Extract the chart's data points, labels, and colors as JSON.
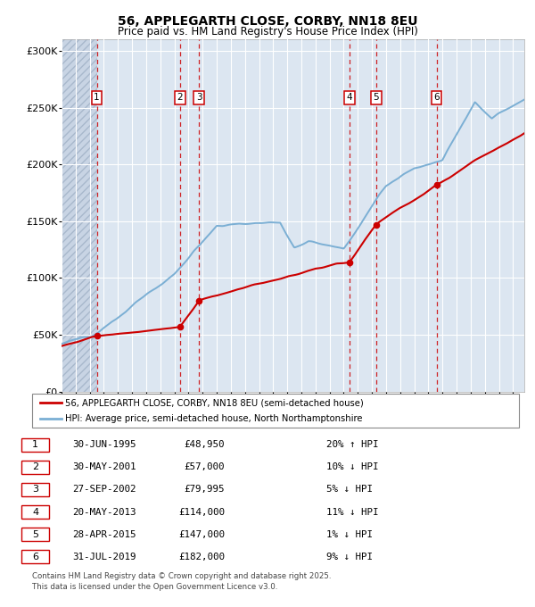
{
  "title1": "56, APPLEGARTH CLOSE, CORBY, NN18 8EU",
  "title2": "Price paid vs. HM Land Registry's House Price Index (HPI)",
  "ylabel_ticks": [
    "£0",
    "£50K",
    "£100K",
    "£150K",
    "£200K",
    "£250K",
    "£300K"
  ],
  "ytick_values": [
    0,
    50000,
    100000,
    150000,
    200000,
    250000,
    300000
  ],
  "ylim": [
    0,
    310000
  ],
  "xlim_start": 1993.0,
  "xlim_end": 2025.8,
  "transactions": [
    {
      "num": 1,
      "date": "30-JUN-1995",
      "price": 48950,
      "pct": "20%",
      "dir": "↑",
      "year": 1995.5
    },
    {
      "num": 2,
      "date": "30-MAY-2001",
      "price": 57000,
      "pct": "10%",
      "dir": "↓",
      "year": 2001.4
    },
    {
      "num": 3,
      "date": "27-SEP-2002",
      "price": 79995,
      "pct": "5%",
      "dir": "↓",
      "year": 2002.75
    },
    {
      "num": 4,
      "date": "20-MAY-2013",
      "price": 114000,
      "pct": "11%",
      "dir": "↓",
      "year": 2013.4
    },
    {
      "num": 5,
      "date": "28-APR-2015",
      "price": 147000,
      "pct": "1%",
      "dir": "↓",
      "year": 2015.3
    },
    {
      "num": 6,
      "date": "31-JUL-2019",
      "price": 182000,
      "pct": "9%",
      "dir": "↓",
      "year": 2019.58
    }
  ],
  "legend_line1": "56, APPLEGARTH CLOSE, CORBY, NN18 8EU (semi-detached house)",
  "legend_line2": "HPI: Average price, semi-detached house, North Northamptonshire",
  "footnote1": "Contains HM Land Registry data © Crown copyright and database right 2025.",
  "footnote2": "This data is licensed under the Open Government Licence v3.0.",
  "red_color": "#cc0000",
  "blue_color": "#7bafd4",
  "bg_color": "#dce6f1",
  "grid_color": "#ffffff",
  "dashed_red": "#cc0000",
  "dashed_blue": "#7bafd4"
}
